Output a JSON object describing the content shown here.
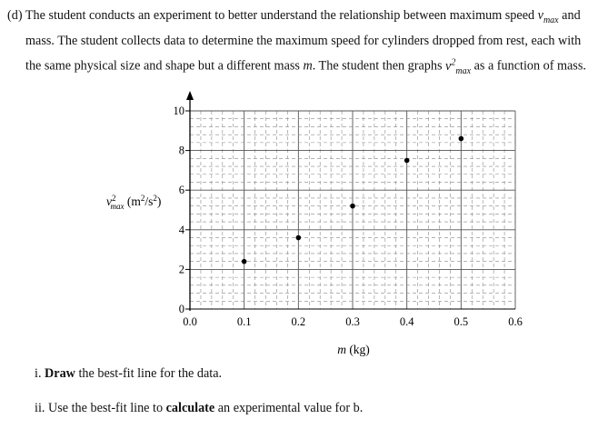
{
  "question": {
    "part_label": "(d)",
    "line1_a": "The student conducts an experiment to better understand the relationship between maximum speed",
    "vmax_symbol": "v",
    "vmax_sub": "max",
    "line1_b": "and",
    "line2": "mass. The student collects data to determine the maximum speed for cylinders dropped from rest, each with",
    "line3_a": "the same physical size and shape but a different mass",
    "mass_symbol": "m",
    "line3_b": ". The student then graphs",
    "line3_c": "as a function of mass.",
    "vmax_sq_sup": "2"
  },
  "chart_data": {
    "type": "scatter",
    "x": [
      0.1,
      0.2,
      0.3,
      0.4,
      0.5
    ],
    "y": [
      2.4,
      3.6,
      5.2,
      7.5,
      8.6
    ],
    "xlim": [
      0,
      0.6
    ],
    "ylim": [
      0,
      10
    ],
    "xticks": [
      "0.0",
      "0.1",
      "0.2",
      "0.3",
      "0.4",
      "0.5",
      "0.6"
    ],
    "yticks": [
      "0",
      "2",
      "4",
      "6",
      "8",
      "10"
    ],
    "xlabel": "m (kg)",
    "ylabel": "v²max (m²/s²)",
    "grid": true
  },
  "tasks": {
    "i_num": "i.",
    "i_bold": "Draw",
    "i_rest": "the best-fit line for the data.",
    "ii_num": "ii.",
    "ii_a": "Use the best-fit line to",
    "ii_bold": "calculate",
    "ii_b": "an experimental value for b."
  }
}
